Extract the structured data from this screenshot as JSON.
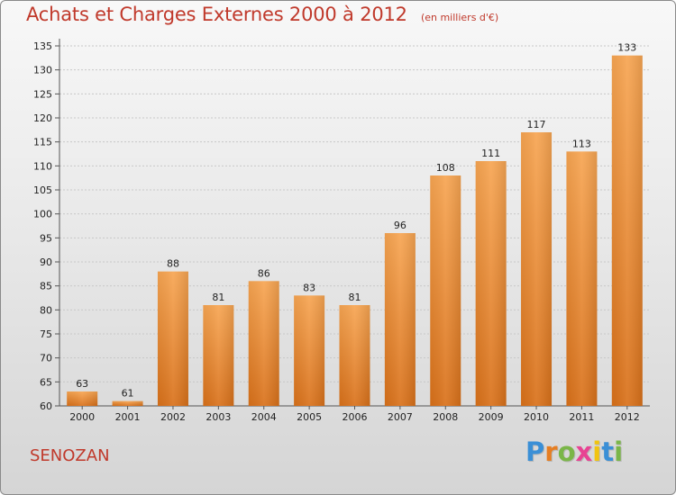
{
  "title": "Achats et Charges Externes 2000 à 2012",
  "unit": "(en milliers d'€)",
  "commune": "SENOZAN",
  "logo": {
    "letters": [
      "P",
      "r",
      "o",
      "x",
      "i",
      "t",
      "i"
    ],
    "colors": [
      "#3a8fd6",
      "#e67e22",
      "#7ab648",
      "#e84393",
      "#f1c40f",
      "#3a8fd6",
      "#7ab648"
    ]
  },
  "colors": {
    "bar_top": "#f7a552",
    "bar_bottom": "#d9711a",
    "title": "#c0392b",
    "grid": "#c8c8c8"
  },
  "chart_data": {
    "type": "bar",
    "title": "Achats et Charges Externes 2000 à 2012",
    "subtitle": "(en milliers d'€)",
    "xlabel": "",
    "ylabel": "",
    "categories": [
      "2000",
      "2001",
      "2002",
      "2003",
      "2004",
      "2005",
      "2006",
      "2007",
      "2008",
      "2009",
      "2010",
      "2011",
      "2012"
    ],
    "values": [
      63,
      61,
      88,
      81,
      86,
      83,
      81,
      96,
      108,
      111,
      117,
      113,
      133
    ],
    "ylim": [
      60,
      135
    ],
    "yticks": [
      60,
      65,
      70,
      75,
      80,
      85,
      90,
      95,
      100,
      105,
      110,
      115,
      120,
      125,
      130,
      135
    ],
    "grid": "horizontal",
    "legend": "none"
  }
}
